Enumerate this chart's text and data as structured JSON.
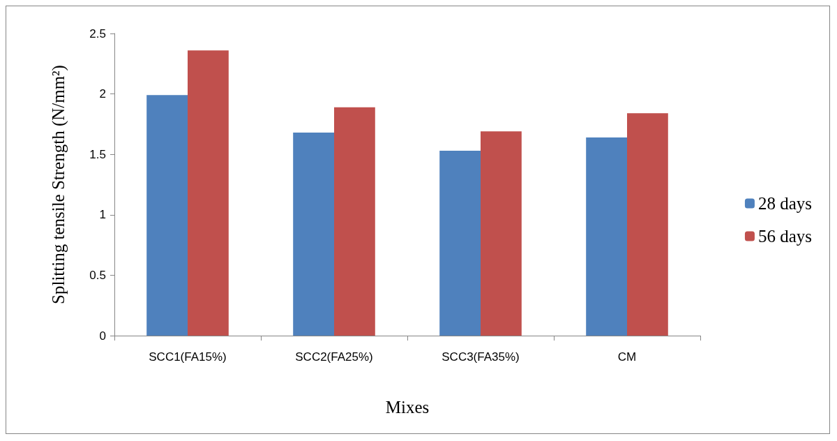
{
  "chart_data": {
    "type": "bar",
    "xlabel": "Mixes",
    "ylabel": "Splitting tensile Strength (N/mm²)",
    "categories": [
      "SCC1(FA15%)",
      "SCC2(FA25%)",
      "SCC3(FA35%)",
      "CM"
    ],
    "series": [
      {
        "name": "28 days",
        "color": "#4f81bd",
        "values": [
          1.99,
          1.68,
          1.53,
          1.64
        ]
      },
      {
        "name": "56 days",
        "color": "#c0504d",
        "values": [
          2.36,
          1.89,
          1.69,
          1.84
        ]
      }
    ],
    "ylim": [
      0,
      2.5
    ],
    "yticks": [
      0,
      0.5,
      1,
      1.5,
      2,
      2.5
    ],
    "grid": false,
    "legend": "right"
  }
}
